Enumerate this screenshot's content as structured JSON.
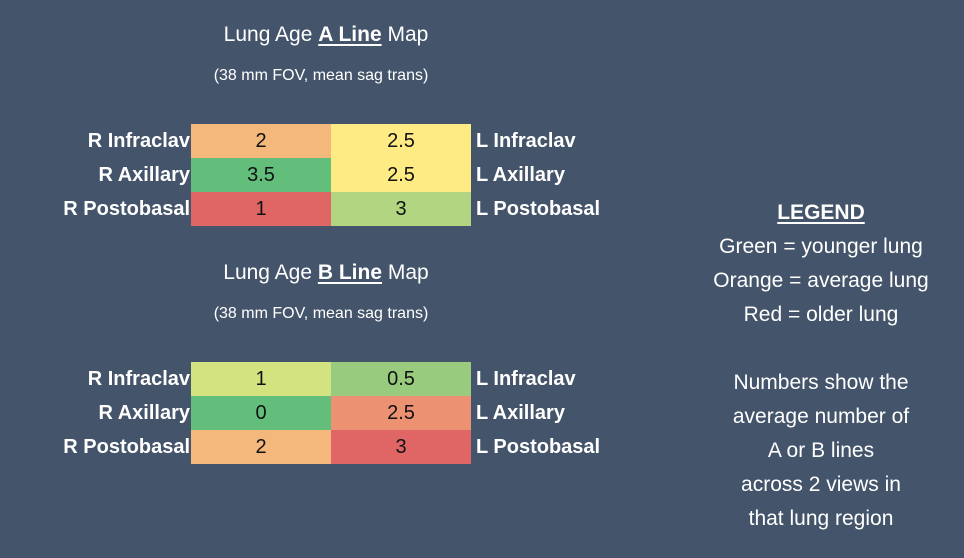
{
  "maps": [
    {
      "title_pre": "Lung Age ",
      "title_line": "A Line",
      "title_post": " Map",
      "subtitle": "(38 mm FOV, mean sag trans)",
      "left_labels": [
        "R Infraclav",
        "R Axillary",
        "R Postobasal"
      ],
      "right_labels": [
        "L Infraclav",
        "L Axillary",
        "L Postobasal"
      ],
      "left_values": [
        "2",
        "3.5",
        "1"
      ],
      "right_values": [
        "2.5",
        "2.5",
        "3"
      ],
      "left_colors": [
        "#f4b77c",
        "#63be7b",
        "#e06666"
      ],
      "right_colors": [
        "#ffeb84",
        "#ffeb84",
        "#b1d580"
      ]
    },
    {
      "title_pre": "Lung Age ",
      "title_line": "B Line",
      "title_post": " Map",
      "subtitle": "(38 mm FOV, mean sag trans)",
      "left_labels": [
        "R Infraclav",
        "R Axillary",
        "R Postobasal"
      ],
      "right_labels": [
        "L Infraclav",
        "L Axillary",
        "L Postobasal"
      ],
      "left_values": [
        "1",
        "0",
        "2"
      ],
      "right_values": [
        "0.5",
        "2.5",
        "3"
      ],
      "left_colors": [
        "#d2e37f",
        "#63be7b",
        "#f4b77c"
      ],
      "right_colors": [
        "#98cb7e",
        "#ec9273",
        "#e06666"
      ]
    }
  ],
  "legend": {
    "heading": "LEGEND",
    "items": [
      "Green = younger lung",
      "Orange = average lung",
      "Red = older lung"
    ],
    "note": [
      "Numbers show the",
      "average number of",
      "A or B lines",
      "across 2 views in",
      "that lung region"
    ]
  },
  "chart_data": [
    {
      "type": "heatmap",
      "title": "Lung Age A Line Map",
      "subtitle": "(38 mm FOV, mean sag trans)",
      "rows": [
        "Infraclav",
        "Axillary",
        "Postobasal"
      ],
      "columns": [
        "R",
        "L"
      ],
      "values": [
        [
          2,
          2.5
        ],
        [
          3.5,
          2.5
        ],
        [
          1,
          3
        ]
      ]
    },
    {
      "type": "heatmap",
      "title": "Lung Age B Line Map",
      "subtitle": "(38 mm FOV, mean sag trans)",
      "rows": [
        "Infraclav",
        "Axillary",
        "Postobasal"
      ],
      "columns": [
        "R",
        "L"
      ],
      "values": [
        [
          1,
          0.5
        ],
        [
          0,
          2.5
        ],
        [
          2,
          3
        ]
      ]
    }
  ]
}
